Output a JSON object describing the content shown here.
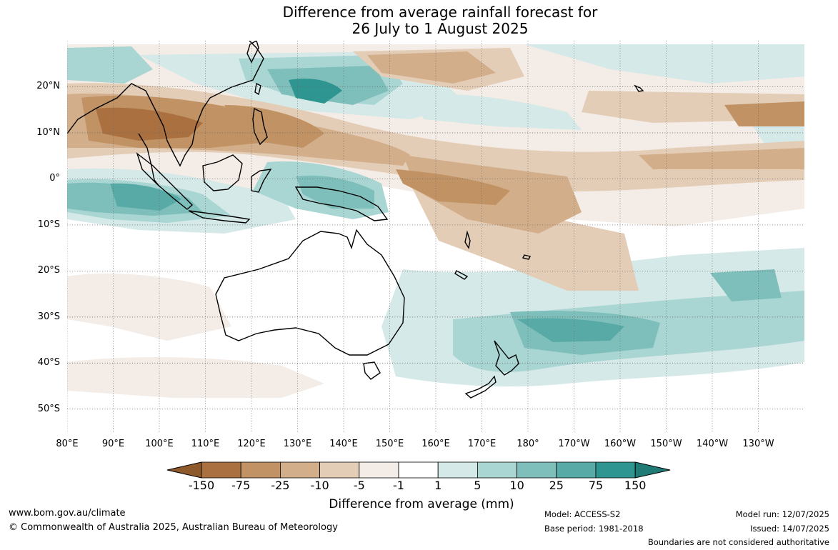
{
  "title": {
    "line1": "Difference from average rainfall forecast for",
    "line2": "26 July to 1 August 2025"
  },
  "map": {
    "projection": "equirectangular",
    "lon_range": [
      80,
      240
    ],
    "lat_range": [
      -55,
      30
    ],
    "lat_ticks": [
      {
        "value": 20,
        "label": "20°N"
      },
      {
        "value": 10,
        "label": "10°N"
      },
      {
        "value": 0,
        "label": "0°"
      },
      {
        "value": -10,
        "label": "10°S"
      },
      {
        "value": -20,
        "label": "20°S"
      },
      {
        "value": -30,
        "label": "30°S"
      },
      {
        "value": -40,
        "label": "40°S"
      },
      {
        "value": -50,
        "label": "50°S"
      }
    ],
    "lon_ticks": [
      {
        "value": 80,
        "label": "80°E"
      },
      {
        "value": 90,
        "label": "90°E"
      },
      {
        "value": 100,
        "label": "100°E"
      },
      {
        "value": 110,
        "label": "110°E"
      },
      {
        "value": 120,
        "label": "120°E"
      },
      {
        "value": 130,
        "label": "130°E"
      },
      {
        "value": 140,
        "label": "140°E"
      },
      {
        "value": 150,
        "label": "150°E"
      },
      {
        "value": 160,
        "label": "160°E"
      },
      {
        "value": 170,
        "label": "170°E"
      },
      {
        "value": 180,
        "label": "180°"
      },
      {
        "value": 190,
        "label": "170°W"
      },
      {
        "value": 200,
        "label": "160°W"
      },
      {
        "value": 210,
        "label": "150°W"
      },
      {
        "value": 220,
        "label": "140°W"
      },
      {
        "value": 230,
        "label": "130°W"
      }
    ],
    "gridlines": "dotted"
  },
  "colorbar": {
    "title": "Difference from average (mm)",
    "ticks": [
      "-150",
      "-75",
      "-25",
      "-10",
      "-5",
      "-1",
      "1",
      "5",
      "10",
      "25",
      "75",
      "150"
    ],
    "colors": [
      "#8f5a2b",
      "#ab7040",
      "#c19264",
      "#d3ae8a",
      "#e4cdb7",
      "#f4ece6",
      "#ffffff",
      "#d5e9e8",
      "#a9d5d3",
      "#7ebfbb",
      "#58aaa6",
      "#2e9590",
      "#207a76"
    ]
  },
  "footer": {
    "url": "www.bom.gov.au/climate",
    "copyright": "© Commonwealth of Australia 2025, Australian Bureau of Meteorology",
    "model": "Model: ACCESS-S2",
    "base_period": "Base period: 1981-2018",
    "model_run": "Model run: 12/07/2025",
    "issued": "Issued: 14/07/2025",
    "disclaimer": "Boundaries are not considered authoritative"
  }
}
